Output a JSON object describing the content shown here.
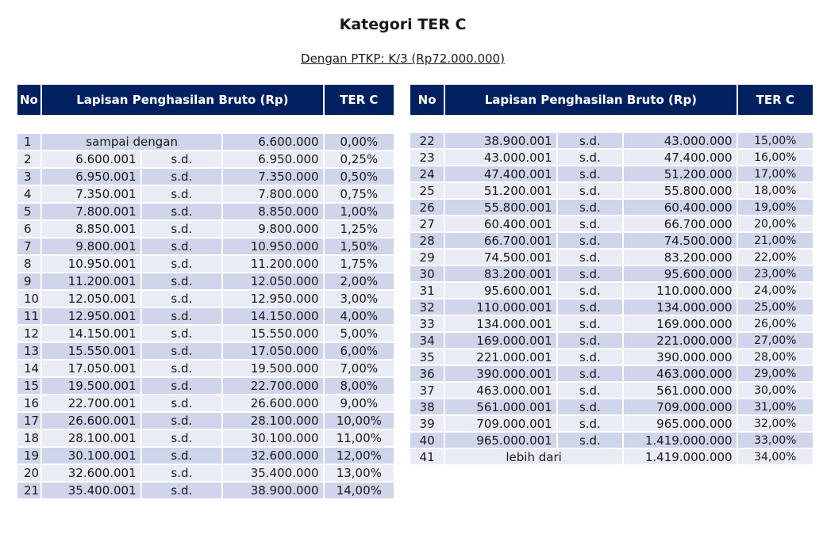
{
  "title": "Kategori TER C",
  "subtitle": "Dengan PTKP: K/3 (Rp72.000.000)",
  "headers": {
    "no": "No",
    "range": "Lapisan Penghasilan Bruto (Rp)",
    "ter": "TER C"
  },
  "colors": {
    "header": "#002060",
    "row_odd": "#cfd5ea",
    "row_even": "#e9ebf5"
  },
  "left_rows": [
    {
      "no": "1",
      "span": "sampai dengan",
      "to": "6.600.000",
      "ter": "0,00%"
    },
    {
      "no": "2",
      "from": "6.600.001",
      "sd": "s.d.",
      "to": "6.950.000",
      "ter": "0,25%"
    },
    {
      "no": "3",
      "from": "6.950.001",
      "sd": "s.d.",
      "to": "7.350.000",
      "ter": "0,50%"
    },
    {
      "no": "4",
      "from": "7.350.001",
      "sd": "s.d.",
      "to": "7.800.000",
      "ter": "0,75%"
    },
    {
      "no": "5",
      "from": "7.800.001",
      "sd": "s.d.",
      "to": "8.850.000",
      "ter": "1,00%"
    },
    {
      "no": "6",
      "from": "8.850.001",
      "sd": "s.d.",
      "to": "9.800.000",
      "ter": "1,25%"
    },
    {
      "no": "7",
      "from": "9.800.001",
      "sd": "s.d.",
      "to": "10.950.000",
      "ter": "1,50%"
    },
    {
      "no": "8",
      "from": "10.950.001",
      "sd": "s.d.",
      "to": "11.200.000",
      "ter": "1,75%"
    },
    {
      "no": "9",
      "from": "11.200.001",
      "sd": "s.d.",
      "to": "12.050.000",
      "ter": "2,00%"
    },
    {
      "no": "10",
      "from": "12.050.001",
      "sd": "s.d.",
      "to": "12.950.000",
      "ter": "3,00%"
    },
    {
      "no": "11",
      "from": "12.950.001",
      "sd": "s.d.",
      "to": "14.150.000",
      "ter": "4,00%"
    },
    {
      "no": "12",
      "from": "14.150.001",
      "sd": "s.d.",
      "to": "15.550.000",
      "ter": "5,00%"
    },
    {
      "no": "13",
      "from": "15.550.001",
      "sd": "s.d.",
      "to": "17.050.000",
      "ter": "6,00%"
    },
    {
      "no": "14",
      "from": "17.050.001",
      "sd": "s.d.",
      "to": "19.500.000",
      "ter": "7,00%"
    },
    {
      "no": "15",
      "from": "19.500.001",
      "sd": "s.d.",
      "to": "22.700.000",
      "ter": "8,00%"
    },
    {
      "no": "16",
      "from": "22.700.001",
      "sd": "s.d.",
      "to": "26.600.000",
      "ter": "9,00%"
    },
    {
      "no": "17",
      "from": "26.600.001",
      "sd": "s.d.",
      "to": "28.100.000",
      "ter": "10,00%"
    },
    {
      "no": "18",
      "from": "28.100.001",
      "sd": "s.d.",
      "to": "30.100.000",
      "ter": "11,00%"
    },
    {
      "no": "19",
      "from": "30.100.001",
      "sd": "s.d.",
      "to": "32.600.000",
      "ter": "12,00%"
    },
    {
      "no": "20",
      "from": "32.600.001",
      "sd": "s.d.",
      "to": "35.400.000",
      "ter": "13,00%"
    },
    {
      "no": "21",
      "from": "35.400.001",
      "sd": "s.d.",
      "to": "38.900.000",
      "ter": "14,00%"
    }
  ],
  "right_rows": [
    {
      "no": "22",
      "from": "38.900.001",
      "sd": "s.d.",
      "to": "43.000.000",
      "ter": "15,00%"
    },
    {
      "no": "23",
      "from": "43.000.001",
      "sd": "s.d.",
      "to": "47.400.000",
      "ter": "16,00%"
    },
    {
      "no": "24",
      "from": "47.400.001",
      "sd": "s.d.",
      "to": "51.200.000",
      "ter": "17,00%"
    },
    {
      "no": "25",
      "from": "51.200.001",
      "sd": "s.d.",
      "to": "55.800.000",
      "ter": "18,00%"
    },
    {
      "no": "26",
      "from": "55.800.001",
      "sd": "s.d.",
      "to": "60.400.000",
      "ter": "19,00%"
    },
    {
      "no": "27",
      "from": "60.400.001",
      "sd": "s.d.",
      "to": "66.700.000",
      "ter": "20,00%"
    },
    {
      "no": "28",
      "from": "66.700.001",
      "sd": "s.d.",
      "to": "74.500.000",
      "ter": "21,00%"
    },
    {
      "no": "29",
      "from": "74.500.001",
      "sd": "s.d.",
      "to": "83.200.000",
      "ter": "22,00%"
    },
    {
      "no": "30",
      "from": "83.200.001",
      "sd": "s.d.",
      "to": "95.600.000",
      "ter": "23,00%"
    },
    {
      "no": "31",
      "from": "95.600.001",
      "sd": "s.d.",
      "to": "110.000.000",
      "ter": "24,00%"
    },
    {
      "no": "32",
      "from": "110.000.001",
      "sd": "s.d.",
      "to": "134.000.000",
      "ter": "25,00%"
    },
    {
      "no": "33",
      "from": "134.000.001",
      "sd": "s.d.",
      "to": "169.000.000",
      "ter": "26,00%"
    },
    {
      "no": "34",
      "from": "169.000.001",
      "sd": "s.d.",
      "to": "221.000.000",
      "ter": "27,00%"
    },
    {
      "no": "35",
      "from": "221.000.001",
      "sd": "s.d.",
      "to": "390.000.000",
      "ter": "28,00%"
    },
    {
      "no": "36",
      "from": "390.000.001",
      "sd": "s.d.",
      "to": "463.000.000",
      "ter": "29,00%"
    },
    {
      "no": "37",
      "from": "463.000.001",
      "sd": "s.d.",
      "to": "561.000.000",
      "ter": "30,00%"
    },
    {
      "no": "38",
      "from": "561.000.001",
      "sd": "s.d.",
      "to": "709.000.000",
      "ter": "31,00%"
    },
    {
      "no": "39",
      "from": "709.000.001",
      "sd": "s.d.",
      "to": "965.000.000",
      "ter": "32,00%"
    },
    {
      "no": "40",
      "from": "965.000.001",
      "sd": "s.d.",
      "to": "1.419.000.000",
      "ter": "33,00%"
    },
    {
      "no": "41",
      "span": "lebih dari",
      "to": "1.419.000.000",
      "ter": "34,00%"
    }
  ]
}
